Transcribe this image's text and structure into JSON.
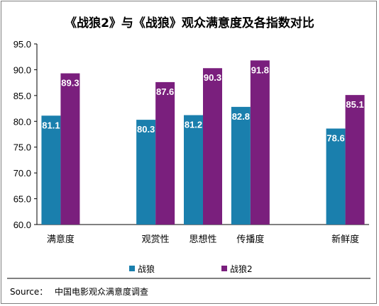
{
  "chart_data": {
    "type": "bar",
    "title": "《战狼2》与《战狼》观众满意度及各指数对比",
    "categories": [
      "满意度",
      "",
      "观赏性",
      "思想性",
      "传播度",
      "",
      "新鲜度"
    ],
    "series": [
      {
        "name": "战狼",
        "color": "#1a7fad",
        "values": [
          81.1,
          null,
          80.3,
          81.2,
          82.8,
          null,
          78.6
        ]
      },
      {
        "name": "战狼2",
        "color": "#7a1f7d",
        "values": [
          89.3,
          null,
          87.6,
          90.3,
          91.8,
          null,
          85.1
        ]
      }
    ],
    "ylim": [
      60,
      95
    ],
    "yticks": [
      "60.0",
      "65.0",
      "70.0",
      "75.0",
      "80.0",
      "85.0",
      "90.0",
      "95.0"
    ],
    "legend_position": "bottom",
    "grid": false
  },
  "footer": {
    "source_label": "Source：",
    "source_text": "中国电影观众满意度调查"
  }
}
